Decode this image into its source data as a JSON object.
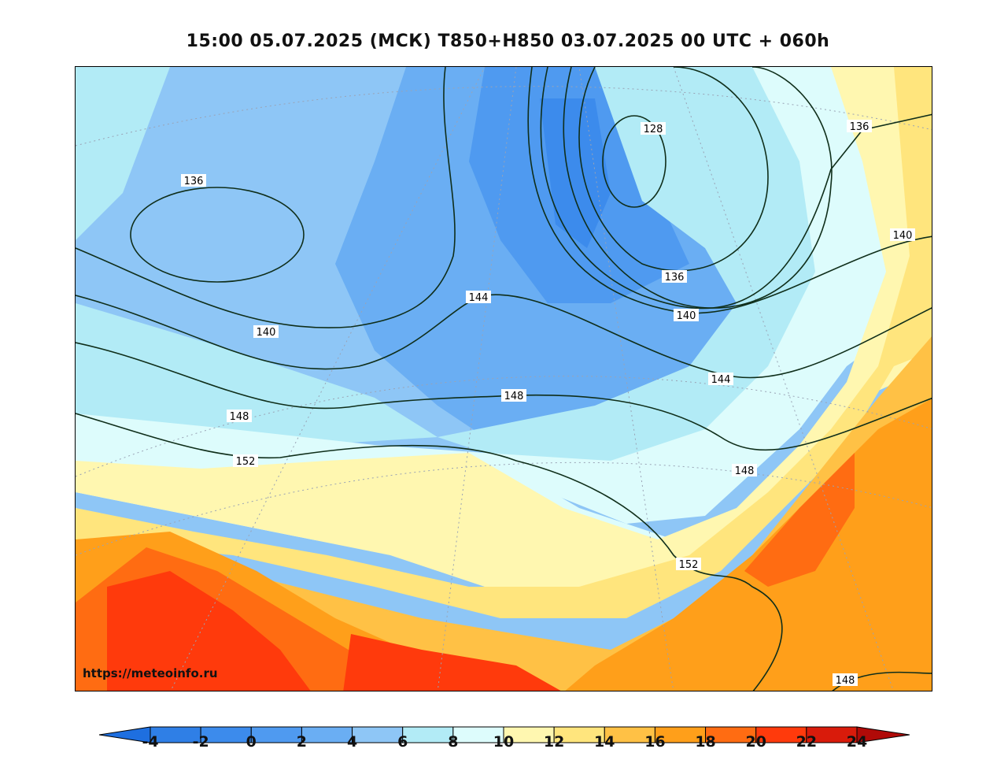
{
  "title": "15:00 05.07.2025 (МСК) T850+H850 03.07.2025 00 UTC + 060h",
  "watermark": "https://meteoinfo.ru",
  "colorbar": {
    "tick_labels": [
      "-4",
      "-2",
      "0",
      "2",
      "4",
      "6",
      "8",
      "10",
      "12",
      "14",
      "16",
      "18",
      "20",
      "22",
      "24"
    ],
    "colors": [
      "#2f7fe6",
      "#3c8bec",
      "#4f9af0",
      "#6aaef3",
      "#8ec6f6",
      "#b2ebf6",
      "#ddfcfc",
      "#fff7b0",
      "#ffe57d",
      "#ffc145",
      "#ff9f1a",
      "#ff6c12",
      "#ff3a0c",
      "#d91b0b"
    ],
    "under_color": "#1e6fe0",
    "over_color": "#b00a08"
  },
  "contour_labels": [
    "128",
    "136",
    "136",
    "136",
    "140",
    "140",
    "140",
    "144",
    "144",
    "148",
    "148",
    "148",
    "152",
    "152",
    "148"
  ]
}
